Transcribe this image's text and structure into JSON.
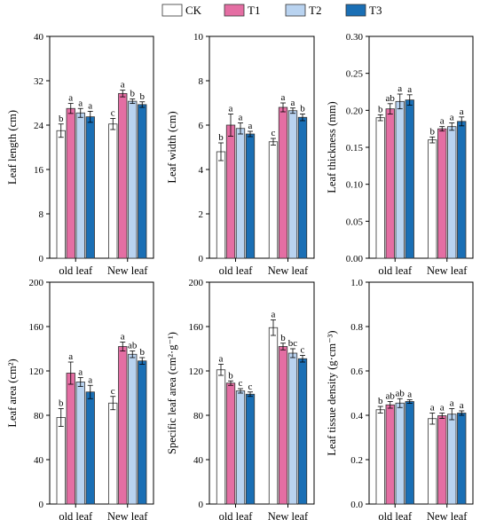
{
  "legend": {
    "placement": "top-center",
    "items": [
      {
        "name": "CK",
        "color": "#ffffff"
      },
      {
        "name": "T1",
        "color": "#e46ea3"
      },
      {
        "name": "T2",
        "color": "#b9d3f0"
      },
      {
        "name": "T3",
        "color": "#1a6fb5"
      }
    ]
  },
  "chart_data": [
    {
      "type": "bar",
      "ylabel": "Leaf length (cm)",
      "ylim": [
        0,
        40
      ],
      "yticks": [
        0,
        8,
        16,
        24,
        32,
        40
      ],
      "categories": [
        "old leaf",
        "New leaf"
      ],
      "series": [
        {
          "name": "CK",
          "values": [
            23.0,
            24.2
          ],
          "errors": [
            1.2,
            1.0
          ],
          "labels": [
            "b",
            "c"
          ]
        },
        {
          "name": "T1",
          "values": [
            27.0,
            29.7
          ],
          "errors": [
            0.9,
            0.6
          ],
          "labels": [
            "a",
            "a"
          ]
        },
        {
          "name": "T2",
          "values": [
            26.2,
            28.3
          ],
          "errors": [
            0.8,
            0.4
          ],
          "labels": [
            "a",
            "b"
          ]
        },
        {
          "name": "T3",
          "values": [
            25.5,
            27.7
          ],
          "errors": [
            1.0,
            0.5
          ],
          "labels": [
            "a",
            "b"
          ]
        }
      ]
    },
    {
      "type": "bar",
      "ylabel": "Leaf width (cm)",
      "ylim": [
        0,
        10
      ],
      "yticks": [
        0,
        2,
        4,
        6,
        8,
        10
      ],
      "categories": [
        "old leaf",
        "New leaf"
      ],
      "series": [
        {
          "name": "CK",
          "values": [
            4.8,
            5.25
          ],
          "errors": [
            0.4,
            0.15
          ],
          "labels": [
            "b",
            "c"
          ]
        },
        {
          "name": "T1",
          "values": [
            6.0,
            6.8
          ],
          "errors": [
            0.5,
            0.2
          ],
          "labels": [
            "a",
            "a"
          ]
        },
        {
          "name": "T2",
          "values": [
            5.85,
            6.65
          ],
          "errors": [
            0.25,
            0.12
          ],
          "labels": [
            "a",
            "a"
          ]
        },
        {
          "name": "T3",
          "values": [
            5.6,
            6.35
          ],
          "errors": [
            0.12,
            0.15
          ],
          "labels": [
            "a",
            "b"
          ]
        }
      ]
    },
    {
      "type": "bar",
      "ylabel": "Leaf thickness (mm)",
      "ylim": [
        0,
        0.3
      ],
      "yticks": [
        "0.00",
        "0.05",
        "0.10",
        "0.15",
        "0.20",
        "0.25",
        "0.30"
      ],
      "categories": [
        "old leaf",
        "New leaf"
      ],
      "series": [
        {
          "name": "CK",
          "values": [
            0.19,
            0.16
          ],
          "errors": [
            0.004,
            0.004
          ],
          "labels": [
            "b",
            "b"
          ]
        },
        {
          "name": "T1",
          "values": [
            0.202,
            0.175
          ],
          "errors": [
            0.007,
            0.003
          ],
          "labels": [
            "ab",
            "a"
          ]
        },
        {
          "name": "T2",
          "values": [
            0.212,
            0.178
          ],
          "errors": [
            0.01,
            0.005
          ],
          "labels": [
            "a",
            "a"
          ]
        },
        {
          "name": "T3",
          "values": [
            0.214,
            0.185
          ],
          "errors": [
            0.007,
            0.006
          ],
          "labels": [
            "a",
            "a"
          ]
        }
      ]
    },
    {
      "type": "bar",
      "ylabel": "Leaf area (cm²)",
      "ylim": [
        0,
        200
      ],
      "yticks": [
        0,
        40,
        80,
        120,
        160,
        200
      ],
      "categories": [
        "old leaf",
        "New leaf"
      ],
      "series": [
        {
          "name": "CK",
          "values": [
            78,
            91
          ],
          "errors": [
            8,
            6
          ],
          "labels": [
            "b",
            "c"
          ]
        },
        {
          "name": "T1",
          "values": [
            118,
            142
          ],
          "errors": [
            10,
            4
          ],
          "labels": [
            "a",
            "a"
          ]
        },
        {
          "name": "T2",
          "values": [
            110,
            135
          ],
          "errors": [
            4,
            3
          ],
          "labels": [
            "a",
            "ab"
          ]
        },
        {
          "name": "T3",
          "values": [
            101,
            129
          ],
          "errors": [
            6,
            3
          ],
          "labels": [
            "a",
            "b"
          ]
        }
      ]
    },
    {
      "type": "bar",
      "ylabel": "Specific leaf area (cm²·g⁻¹)",
      "ylim": [
        0,
        200
      ],
      "yticks": [
        0,
        40,
        80,
        120,
        160,
        200
      ],
      "categories": [
        "old leaf",
        "New leaf"
      ],
      "series": [
        {
          "name": "CK",
          "values": [
            121,
            159
          ],
          "errors": [
            5,
            7
          ],
          "labels": [
            "a",
            "a"
          ]
        },
        {
          "name": "T1",
          "values": [
            109,
            142
          ],
          "errors": [
            2,
            3
          ],
          "labels": [
            "b",
            "b"
          ]
        },
        {
          "name": "T2",
          "values": [
            102,
            136
          ],
          "errors": [
            2,
            4
          ],
          "labels": [
            "c",
            "bc"
          ]
        },
        {
          "name": "T3",
          "values": [
            99,
            131
          ],
          "errors": [
            2,
            3
          ],
          "labels": [
            "c",
            "c"
          ]
        }
      ]
    },
    {
      "type": "bar",
      "ylabel": "Leaf tissue density (g·cm⁻³)",
      "ylim": [
        0,
        1.0
      ],
      "yticks": [
        "0.0",
        "0.2",
        "0.4",
        "0.6",
        "0.8",
        "1.0"
      ],
      "categories": [
        "old leaf",
        "New leaf"
      ],
      "series": [
        {
          "name": "CK",
          "values": [
            0.425,
            0.385
          ],
          "errors": [
            0.015,
            0.025
          ],
          "labels": [
            "b",
            "a"
          ]
        },
        {
          "name": "T1",
          "values": [
            0.447,
            0.398
          ],
          "errors": [
            0.015,
            0.012
          ],
          "labels": [
            "ab",
            "a"
          ]
        },
        {
          "name": "T2",
          "values": [
            0.455,
            0.405
          ],
          "errors": [
            0.02,
            0.025
          ],
          "labels": [
            "ab",
            "a"
          ]
        },
        {
          "name": "T3",
          "values": [
            0.462,
            0.41
          ],
          "errors": [
            0.008,
            0.01
          ],
          "labels": [
            "a",
            "a"
          ]
        }
      ]
    }
  ]
}
